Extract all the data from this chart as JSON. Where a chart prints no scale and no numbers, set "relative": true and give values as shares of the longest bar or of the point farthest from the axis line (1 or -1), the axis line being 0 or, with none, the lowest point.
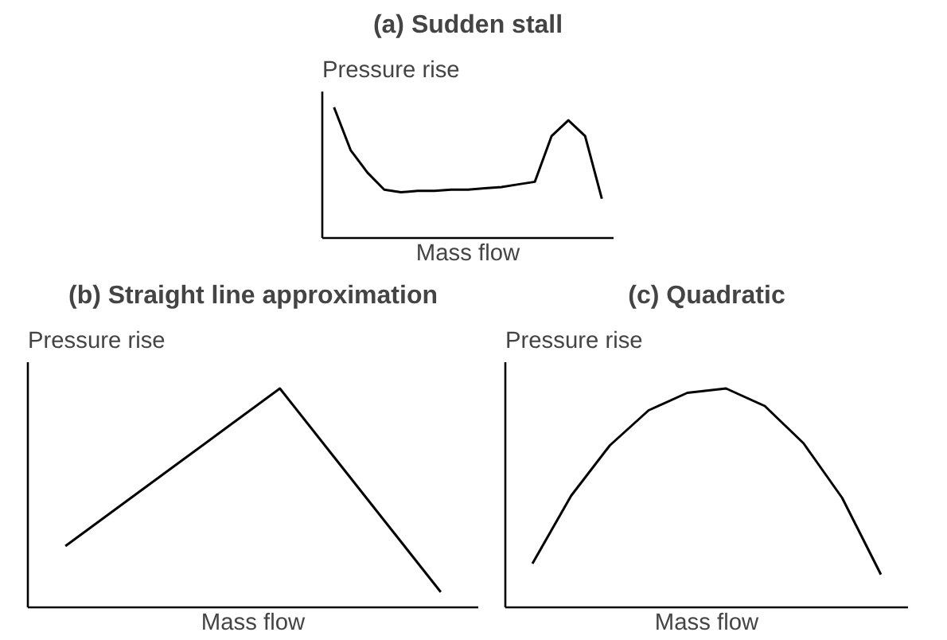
{
  "chart_data": [
    {
      "type": "line",
      "title": "(a) Sudden stall",
      "xlabel": "Mass flow",
      "ylabel": "Pressure rise",
      "relative": true,
      "line_style": "solid",
      "categories": [
        null,
        null,
        null,
        null,
        null,
        null,
        null,
        null,
        null,
        null,
        null,
        null,
        null,
        null,
        null,
        null,
        null
      ],
      "series": [
        {
          "color": "#000000",
          "values": [
            1,
            0.67,
            0.5,
            0.37,
            0.35,
            0.36,
            0.36,
            0.37,
            0.37,
            0.38,
            0.39,
            0.41,
            0.43,
            0.78,
            0.9,
            0.78,
            0.3
          ]
        }
      ]
    },
    {
      "type": "line",
      "title": "(b) Straight line approximation",
      "xlabel": "Mass flow",
      "ylabel": "Pressure rise",
      "relative": true,
      "line_style": "solid",
      "categories": [
        null,
        null,
        null,
        null,
        null,
        null,
        null,
        null
      ],
      "series": [
        {
          "color": "#000000",
          "values": [
            0.28,
            0.46,
            0.64,
            0.82,
            1,
            0.69,
            0.38,
            0.07
          ]
        }
      ]
    },
    {
      "type": "line",
      "title": "(c) Quadratic",
      "xlabel": "Mass flow",
      "ylabel": "Pressure rise",
      "relative": true,
      "line_style": "solid",
      "categories": [
        null,
        null,
        null,
        null,
        null,
        null,
        null,
        null,
        null,
        null
      ],
      "series": [
        {
          "color": "#000000",
          "values": [
            0.2,
            0.51,
            0.74,
            0.9,
            0.98,
            1,
            0.92,
            0.75,
            0.5,
            0.15
          ]
        }
      ]
    }
  ]
}
